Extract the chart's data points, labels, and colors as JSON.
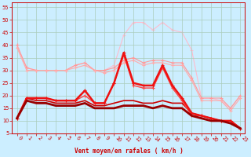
{
  "xlabel": "Vent moyen/en rafales ( km/h )",
  "bg_color": "#cceeff",
  "grid_color": "#aaccbb",
  "x_values": [
    0,
    1,
    2,
    3,
    4,
    5,
    6,
    7,
    8,
    9,
    10,
    11,
    12,
    13,
    14,
    15,
    16,
    17,
    18,
    19,
    20,
    21,
    22,
    23
  ],
  "series": [
    {
      "y": [
        40,
        31,
        30,
        30,
        30,
        30,
        32,
        33,
        30,
        30,
        32,
        44,
        49,
        49,
        46,
        49,
        46,
        45,
        38,
        19,
        19,
        18,
        15,
        20
      ],
      "color": "#ffbbcc",
      "lw": 0.8,
      "marker": "+",
      "ms": 2.5,
      "zorder": 1
    },
    {
      "y": [
        40,
        31,
        30,
        30,
        30,
        30,
        32,
        33,
        30,
        30,
        31,
        34,
        35,
        33,
        34,
        34,
        33,
        33,
        27,
        19,
        19,
        19,
        15,
        20
      ],
      "color": "#ff9999",
      "lw": 0.8,
      "marker": "+",
      "ms": 2.5,
      "zorder": 2
    },
    {
      "y": [
        39,
        30,
        30,
        30,
        30,
        30,
        31,
        32,
        30,
        29,
        30,
        33,
        34,
        32,
        33,
        33,
        32,
        32,
        26,
        18,
        18,
        18,
        14,
        19
      ],
      "color": "#ffaaaa",
      "lw": 0.8,
      "marker": "+",
      "ms": 2.5,
      "zorder": 2
    },
    {
      "y": [
        11,
        19,
        19,
        19,
        18,
        18,
        18,
        22,
        17,
        17,
        25,
        37,
        25,
        24,
        24,
        32,
        24,
        19,
        13,
        12,
        11,
        10,
        10,
        7
      ],
      "color": "#ee1111",
      "lw": 1.8,
      "marker": "+",
      "ms": 3,
      "zorder": 5
    },
    {
      "y": [
        11,
        19,
        19,
        19,
        18,
        18,
        18,
        20,
        17,
        17,
        25,
        36,
        24,
        23,
        23,
        31,
        23,
        18,
        12,
        12,
        11,
        10,
        10,
        7
      ],
      "color": "#ff4444",
      "lw": 1.0,
      "marker": "+",
      "ms": 2.5,
      "zorder": 4
    },
    {
      "y": [
        11,
        19,
        18,
        18,
        17,
        17,
        17,
        18,
        16,
        16,
        17,
        18,
        18,
        17,
        17,
        18,
        17,
        17,
        13,
        12,
        11,
        10,
        10,
        7
      ],
      "color": "#cc0000",
      "lw": 1.2,
      "marker": null,
      "ms": 0,
      "zorder": 3
    },
    {
      "y": [
        11,
        18,
        17,
        17,
        16,
        16,
        16,
        17,
        15,
        15,
        15,
        16,
        16,
        16,
        15,
        16,
        15,
        15,
        12,
        11,
        10,
        10,
        9,
        7
      ],
      "color": "#990000",
      "lw": 2.0,
      "marker": null,
      "ms": 0,
      "zorder": 6
    }
  ],
  "ylim": [
    5,
    57
  ],
  "xlim": [
    -0.5,
    23.5
  ],
  "yticks": [
    5,
    10,
    15,
    20,
    25,
    30,
    35,
    40,
    45,
    50,
    55
  ],
  "xticks": [
    0,
    1,
    2,
    3,
    4,
    5,
    6,
    7,
    8,
    9,
    10,
    11,
    12,
    13,
    14,
    15,
    16,
    17,
    18,
    19,
    20,
    21,
    22,
    23
  ],
  "xlabel_fontsize": 5.5,
  "tick_fontsize": 4.8,
  "ylabel_fontsize": 5.0
}
